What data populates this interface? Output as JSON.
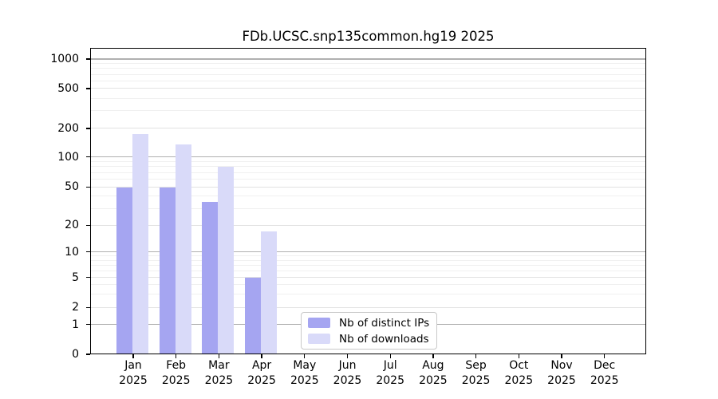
{
  "chart_data": {
    "type": "bar",
    "title": "FDb.UCSC.snp135common.hg19 2025",
    "categories": [
      "Jan",
      "Feb",
      "Mar",
      "Apr",
      "May",
      "Jun",
      "Jul",
      "Aug",
      "Sep",
      "Oct",
      "Nov",
      "Dec"
    ],
    "year_label": "2025",
    "series": [
      {
        "name": "Nb of distinct IPs",
        "color": "#a5a5f1",
        "values": [
          49,
          49,
          35,
          5,
          0,
          0,
          0,
          0,
          0,
          0,
          0,
          0
        ]
      },
      {
        "name": "Nb of downloads",
        "color": "#d9daf9",
        "values": [
          175,
          135,
          80,
          17,
          0,
          0,
          0,
          0,
          0,
          0,
          0,
          0
        ]
      }
    ],
    "yticks": [
      0,
      1,
      2,
      5,
      10,
      20,
      50,
      100,
      200,
      500,
      1000
    ],
    "yscale": "log-like (0 pinned at baseline, compressed below 10)",
    "ylim": [
      0,
      1240
    ],
    "xlabel": "",
    "ylabel": "",
    "grid": "horizontal major gridlines at 1/10/100/1000 plus faint log minor gridlines",
    "legend_position": "lower center, inside plot"
  },
  "colors": {
    "bar_distinct_ips": "#a5a5f1",
    "bar_downloads": "#d9daf9",
    "grid_major": "#b0b0b0",
    "grid_minor": "#e2e2e2",
    "grid_faint_minor": "#f0f0f0",
    "axis": "#000000",
    "background": "#ffffff"
  }
}
